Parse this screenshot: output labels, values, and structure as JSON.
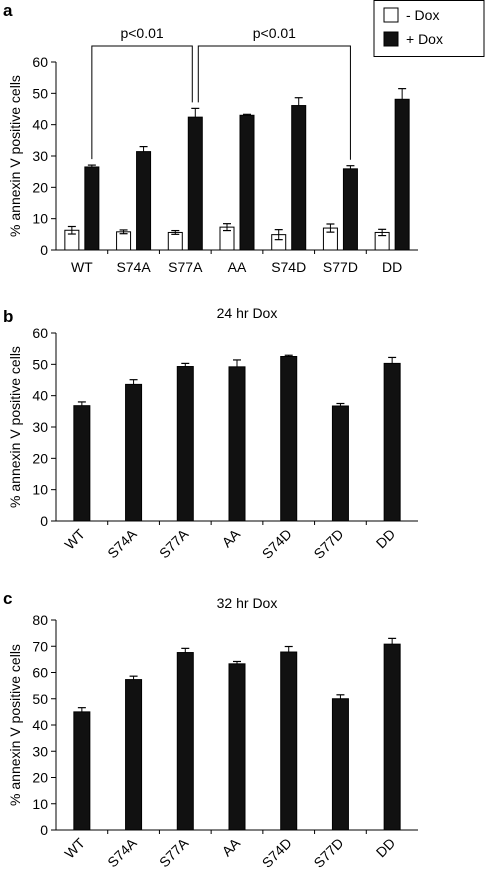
{
  "chart_data": [
    {
      "panel": "a",
      "type": "bar",
      "title": "",
      "ylabel": "% annexin V positive cells",
      "ylim": [
        0,
        60
      ],
      "yticks": [
        0,
        10,
        20,
        30,
        40,
        50,
        60
      ],
      "categories": [
        "WT",
        "S74A",
        "S77A",
        "AA",
        "S74D",
        "S77D",
        "DD"
      ],
      "series": [
        {
          "name": "- Dox",
          "color": "#ffffff",
          "values": [
            6.3,
            5.8,
            5.6,
            7.3,
            4.9,
            7.0,
            5.6
          ],
          "errors": [
            1.2,
            0.6,
            0.6,
            1.1,
            1.6,
            1.3,
            1.0
          ]
        },
        {
          "name": "+ Dox",
          "color": "#111111",
          "values": [
            26.5,
            31.4,
            42.4,
            43.0,
            46.1,
            25.9,
            48.1
          ],
          "errors": [
            0.6,
            1.6,
            2.8,
            0.3,
            2.5,
            1.0,
            3.4
          ]
        }
      ],
      "legend": {
        "position": "top-right",
        "entries": [
          "- Dox",
          "+ Dox"
        ]
      },
      "annotations": [
        {
          "text": "p<0.01",
          "from": "WT",
          "to": "S77A"
        },
        {
          "text": "p<0.01",
          "from": "S77A",
          "to": "S77D"
        }
      ]
    },
    {
      "panel": "b",
      "type": "bar",
      "title": "24 hr Dox",
      "ylabel": "% annexin V positive cells",
      "ylim": [
        0,
        60
      ],
      "yticks": [
        0,
        10,
        20,
        30,
        40,
        50,
        60
      ],
      "categories": [
        "WT",
        "S74A",
        "S77A",
        "AA",
        "S74D",
        "S77D",
        "DD"
      ],
      "series": [
        {
          "color": "#111111",
          "values": [
            36.8,
            43.6,
            49.3,
            49.2,
            52.5,
            36.7,
            50.3
          ],
          "errors": [
            1.2,
            1.5,
            1.0,
            2.2,
            0.4,
            0.8,
            1.9
          ]
        }
      ]
    },
    {
      "panel": "c",
      "type": "bar",
      "title": "32 hr Dox",
      "ylabel": "% annexin V positive cells",
      "ylim": [
        0,
        80
      ],
      "yticks": [
        0,
        10,
        20,
        30,
        40,
        50,
        60,
        70,
        80
      ],
      "categories": [
        "WT",
        "S74A",
        "S77A",
        "AA",
        "S74D",
        "S77D",
        "DD"
      ],
      "series": [
        {
          "color": "#111111",
          "values": [
            45.0,
            57.3,
            67.6,
            63.3,
            67.8,
            50.0,
            70.8
          ],
          "errors": [
            1.6,
            1.3,
            1.6,
            0.9,
            2.1,
            1.5,
            2.2
          ]
        }
      ]
    }
  ]
}
